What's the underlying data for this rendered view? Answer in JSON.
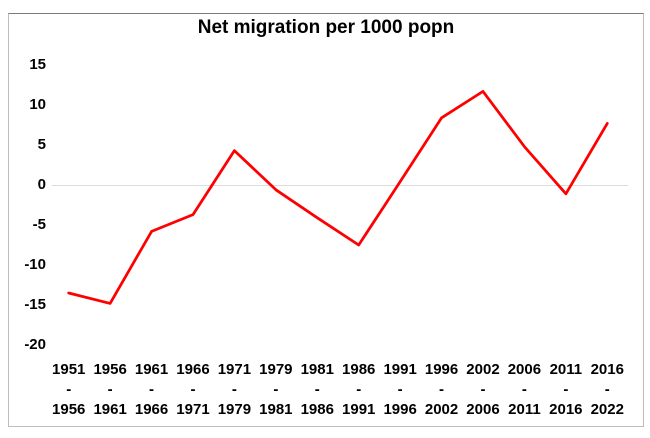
{
  "chart_data": {
    "type": "line",
    "title": "Net migration per 1000 popn",
    "categories": [
      "1951-1956",
      "1956-1961",
      "1961-1966",
      "1966-1971",
      "1971-1979",
      "1979-1981",
      "1981-1986",
      "1986-1991",
      "1991-1996",
      "1996-2002",
      "2002-2006",
      "2006-2011",
      "2011-2016",
      "2016-2022"
    ],
    "values": [
      -13.5,
      -14.8,
      -5.8,
      -3.7,
      4.3,
      -0.6,
      -4.1,
      -7.5,
      0.4,
      8.4,
      11.7,
      4.8,
      -1.1,
      7.7
    ],
    "line_color": "#fe0000",
    "ylim": [
      -20,
      15
    ],
    "yticks": [
      15,
      10,
      5,
      0,
      -5,
      -10,
      -15,
      -20
    ],
    "xlabel": "",
    "ylabel": "",
    "legend_position": "none",
    "gridlines": "horizontal zero line only",
    "zero_line_color": "#dcdcdc",
    "background": "#ffffff",
    "frame_border_color": "#bdbdbd"
  }
}
